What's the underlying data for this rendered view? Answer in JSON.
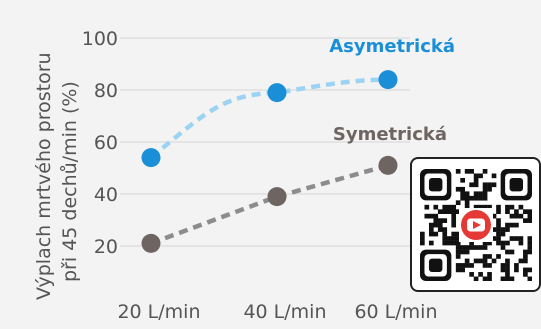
{
  "chart_data": {
    "type": "line",
    "categories": [
      "20 L/min",
      "40 L/min",
      "60 L/min"
    ],
    "ylabel_lines": [
      "Výplach mrtvého prostoru",
      "při 45 dechů/min (%)"
    ],
    "ylim": [
      10,
      105
    ],
    "yticks": [
      "20",
      "40",
      "60",
      "80",
      "100"
    ],
    "grid": true,
    "series": [
      {
        "name": "Asymetrická",
        "values": [
          54,
          79,
          84
        ],
        "color": "#1a8fd8",
        "line_color": "#9cd3f2"
      },
      {
        "name": "Symetrická",
        "values": [
          21,
          39,
          51
        ],
        "color": "#6e6462",
        "line_color": "#8c8c8c"
      }
    ]
  },
  "qr": {
    "icon": "youtube-play-icon",
    "accent": "#e53935"
  }
}
